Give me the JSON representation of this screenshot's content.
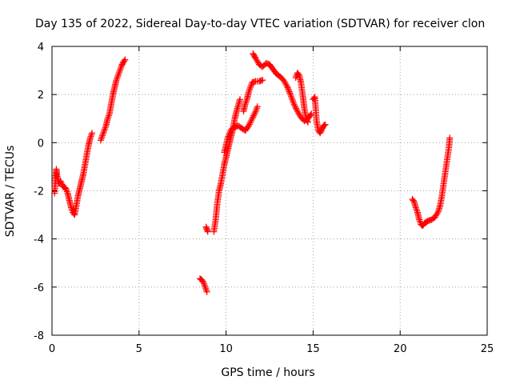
{
  "chart_data": {
    "type": "scatter",
    "title": "Day 135 of 2022, Sidereal Day-to-day VTEC variation (SDTVAR) for receiver clon",
    "xlabel": "GPS time / hours",
    "ylabel": "SDTVAR / TECUs",
    "xlim": [
      0,
      25
    ],
    "ylim": [
      -8,
      4
    ],
    "xticks": [
      0,
      5,
      10,
      15,
      20,
      25
    ],
    "yticks": [
      -8,
      -6,
      -4,
      -2,
      0,
      2,
      4
    ],
    "grid": true,
    "marker": "+",
    "color": "#ff0000",
    "series": [
      {
        "name": "SDTVAR",
        "segments": [
          [
            [
              0.15,
              -2.1
            ],
            [
              0.2,
              -1.5
            ],
            [
              0.25,
              -1.1
            ],
            [
              0.3,
              -1.4
            ],
            [
              0.4,
              -1.7
            ],
            [
              0.5,
              -1.6
            ],
            [
              0.6,
              -1.8
            ],
            [
              0.7,
              -1.85
            ],
            [
              0.8,
              -1.9
            ],
            [
              0.9,
              -2.1
            ],
            [
              1.0,
              -2.4
            ],
            [
              1.1,
              -2.7
            ],
            [
              1.2,
              -2.9
            ],
            [
              1.3,
              -3.0
            ],
            [
              1.4,
              -2.6
            ],
            [
              1.5,
              -2.2
            ],
            [
              1.6,
              -1.9
            ],
            [
              1.7,
              -1.6
            ],
            [
              1.8,
              -1.3
            ],
            [
              1.9,
              -0.9
            ],
            [
              2.0,
              -0.5
            ],
            [
              2.1,
              -0.1
            ],
            [
              2.2,
              0.2
            ],
            [
              2.3,
              0.4
            ]
          ],
          [
            [
              2.8,
              0.1
            ],
            [
              2.9,
              0.3
            ],
            [
              3.0,
              0.5
            ],
            [
              3.1,
              0.7
            ],
            [
              3.2,
              1.0
            ],
            [
              3.3,
              1.2
            ],
            [
              3.4,
              1.6
            ],
            [
              3.5,
              2.0
            ],
            [
              3.6,
              2.3
            ],
            [
              3.7,
              2.6
            ],
            [
              3.8,
              2.8
            ],
            [
              3.9,
              3.0
            ],
            [
              4.0,
              3.2
            ],
            [
              4.1,
              3.35
            ],
            [
              4.2,
              3.45
            ]
          ],
          [
            [
              8.5,
              -5.65
            ],
            [
              8.6,
              -5.7
            ],
            [
              8.7,
              -5.8
            ],
            [
              8.8,
              -6.0
            ],
            [
              8.9,
              -6.2
            ]
          ],
          [
            [
              8.85,
              -3.5
            ],
            [
              8.9,
              -3.6
            ],
            [
              8.95,
              -3.7
            ]
          ],
          [
            [
              9.3,
              -3.7
            ],
            [
              9.4,
              -3.2
            ],
            [
              9.5,
              -2.5
            ],
            [
              9.6,
              -2.0
            ],
            [
              9.7,
              -1.7
            ],
            [
              9.8,
              -1.3
            ],
            [
              9.9,
              -0.9
            ],
            [
              10.0,
              -0.6
            ],
            [
              10.1,
              -0.3
            ],
            [
              10.2,
              0.0
            ],
            [
              10.3,
              0.3
            ],
            [
              10.4,
              0.6
            ],
            [
              10.5,
              1.0
            ],
            [
              10.6,
              1.3
            ],
            [
              10.7,
              1.55
            ],
            [
              10.8,
              1.8
            ]
          ],
          [
            [
              9.9,
              -0.4
            ],
            [
              10.1,
              0.2
            ],
            [
              10.3,
              0.55
            ],
            [
              10.5,
              0.65
            ],
            [
              10.7,
              0.7
            ],
            [
              10.9,
              0.6
            ],
            [
              11.1,
              0.5
            ],
            [
              11.3,
              0.7
            ],
            [
              11.5,
              1.0
            ],
            [
              11.7,
              1.3
            ],
            [
              11.8,
              1.5
            ]
          ],
          [
            [
              11.0,
              1.3
            ],
            [
              11.1,
              1.6
            ],
            [
              11.2,
              1.8
            ],
            [
              11.3,
              2.1
            ],
            [
              11.4,
              2.3
            ],
            [
              11.5,
              2.5
            ],
            [
              11.7,
              2.55
            ],
            [
              11.9,
              2.55
            ],
            [
              12.1,
              2.6
            ]
          ],
          [
            [
              11.55,
              3.7
            ],
            [
              11.7,
              3.5
            ],
            [
              11.9,
              3.25
            ],
            [
              12.1,
              3.15
            ],
            [
              12.3,
              3.3
            ],
            [
              12.5,
              3.25
            ],
            [
              12.7,
              3.05
            ],
            [
              12.9,
              2.85
            ],
            [
              13.1,
              2.75
            ],
            [
              13.3,
              2.6
            ],
            [
              13.5,
              2.35
            ],
            [
              13.7,
              2.0
            ],
            [
              13.9,
              1.6
            ],
            [
              14.1,
              1.3
            ],
            [
              14.3,
              1.05
            ],
            [
              14.5,
              0.9
            ],
            [
              14.7,
              1.0
            ],
            [
              14.9,
              1.2
            ]
          ],
          [
            [
              14.0,
              2.7
            ],
            [
              14.1,
              2.9
            ],
            [
              14.2,
              2.8
            ],
            [
              14.3,
              2.5
            ],
            [
              14.4,
              2.0
            ],
            [
              14.5,
              1.4
            ],
            [
              14.6,
              1.0
            ],
            [
              14.7,
              0.85
            ]
          ],
          [
            [
              15.0,
              1.8
            ],
            [
              15.1,
              1.9
            ],
            [
              15.2,
              0.9
            ],
            [
              15.3,
              0.5
            ],
            [
              15.4,
              0.4
            ],
            [
              15.5,
              0.55
            ],
            [
              15.6,
              0.7
            ],
            [
              15.7,
              0.75
            ]
          ],
          [
            [
              20.7,
              -2.35
            ],
            [
              20.8,
              -2.45
            ],
            [
              20.9,
              -2.7
            ],
            [
              21.0,
              -2.9
            ],
            [
              21.1,
              -3.2
            ],
            [
              21.2,
              -3.4
            ],
            [
              21.3,
              -3.45
            ],
            [
              21.4,
              -3.35
            ],
            [
              21.5,
              -3.3
            ],
            [
              21.6,
              -3.25
            ],
            [
              21.8,
              -3.2
            ],
            [
              22.0,
              -3.1
            ],
            [
              22.2,
              -2.85
            ],
            [
              22.3,
              -2.6
            ],
            [
              22.4,
              -2.2
            ],
            [
              22.5,
              -1.7
            ],
            [
              22.6,
              -1.2
            ],
            [
              22.7,
              -0.7
            ],
            [
              22.8,
              -0.2
            ],
            [
              22.85,
              0.2
            ]
          ]
        ]
      }
    ]
  }
}
